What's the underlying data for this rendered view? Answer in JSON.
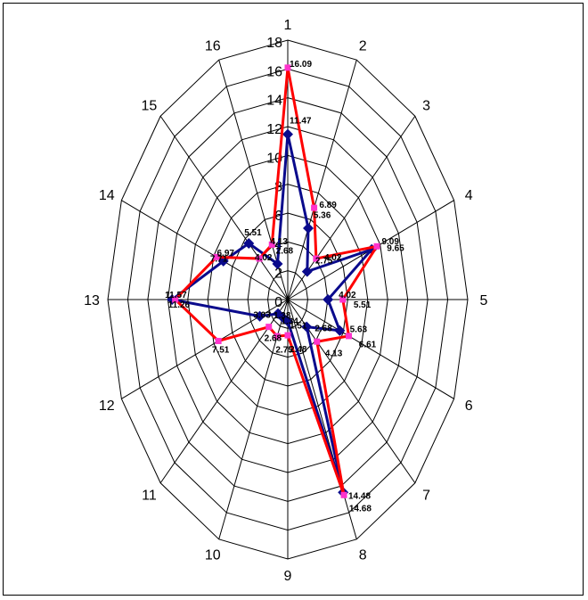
{
  "chart_data": {
    "type": "radar",
    "categories": [
      "1",
      "2",
      "3",
      "4",
      "5",
      "6",
      "7",
      "8",
      "9",
      "10",
      "11",
      "12",
      "13",
      "14",
      "15",
      "16"
    ],
    "radial_ticks": [
      "0",
      "2",
      "4",
      "6",
      "8",
      "10",
      "12",
      "14",
      "16",
      "18"
    ],
    "rlim": [
      0,
      18
    ],
    "grid": true,
    "legend": "none",
    "series": [
      {
        "color": "#0a0a8c",
        "marker": "diamond",
        "values": [
          11.47,
          5.36,
          2.75,
          9.09,
          4.02,
          5.63,
          2.68,
          14.48,
          1.51,
          1.34,
          1.38,
          3.03,
          11.57,
          6.97,
          5.51,
          2.68
        ],
        "labels": [
          "11.47",
          "5.36",
          "2.75",
          "9.09",
          "4.02",
          "5.63",
          "2.68",
          "14.48",
          "1.51",
          "1.34",
          "1.38",
          "3.03",
          "11.57",
          "6.97",
          "5.51",
          "2.68"
        ]
      },
      {
        "color": "#ff0000",
        "marker": "square",
        "marker_color": "#ff33cc",
        "values": [
          16.09,
          6.89,
          4.02,
          9.65,
          5.51,
          6.61,
          4.13,
          14.68,
          2.48,
          2.75,
          2.68,
          7.51,
          11.26,
          7.71,
          4.02,
          4.13
        ],
        "labels": [
          "16.09",
          "6.89",
          "4.02",
          "9.65",
          "5.51",
          "6.61",
          "4.13",
          "14.68",
          "2.48",
          "2.75",
          "2.68",
          "7.51",
          "11.26",
          "7.71",
          "4.02",
          "4.13"
        ]
      }
    ]
  }
}
